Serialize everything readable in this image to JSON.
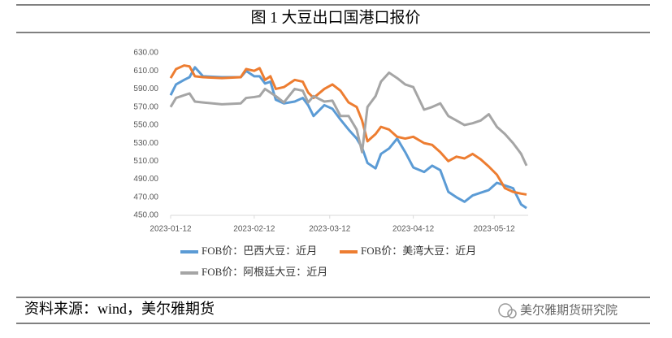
{
  "chart_data": {
    "type": "line",
    "title": "图 1  大豆出口国港口报价",
    "source": "资料来源：wind，美尔雅期货",
    "watermark": "美尔雅期货研究院",
    "x": [
      "2023-01-12",
      "2023-01-14",
      "2023-01-17",
      "2023-01-19",
      "2023-01-21",
      "2023-01-24",
      "2023-01-31",
      "2023-02-07",
      "2023-02-09",
      "2023-02-12",
      "2023-02-14",
      "2023-02-16",
      "2023-02-18",
      "2023-02-20",
      "2023-02-23",
      "2023-02-27",
      "2023-03-02",
      "2023-03-04",
      "2023-03-06",
      "2023-03-10",
      "2023-03-13",
      "2023-03-16",
      "2023-03-19",
      "2023-03-22",
      "2023-03-24",
      "2023-03-26",
      "2023-03-29",
      "2023-03-31",
      "2023-04-03",
      "2023-04-06",
      "2023-04-09",
      "2023-04-12",
      "2023-04-16",
      "2023-04-19",
      "2023-04-22",
      "2023-04-25",
      "2023-04-28",
      "2023-05-01",
      "2023-05-04",
      "2023-05-07",
      "2023-05-10",
      "2023-05-13",
      "2023-05-16",
      "2023-05-19",
      "2023-05-22",
      "2023-05-24"
    ],
    "series": [
      {
        "name": "FOB价：巴西大豆：近月",
        "color": "#5b9bd5",
        "values": [
          583,
          595,
          600,
          603,
          614,
          604,
          603,
          603,
          610,
          604,
          604,
          596,
          598,
          578,
          574,
          576,
          580,
          572,
          560,
          572,
          568,
          556,
          545,
          535,
          525,
          508,
          502,
          518,
          524,
          535,
          520,
          503,
          498,
          505,
          500,
          476,
          470,
          465,
          472,
          475,
          478,
          486,
          483,
          480,
          462,
          458
        ]
      },
      {
        "name": "FOB价：美湾大豆：近月",
        "color": "#ed7d31",
        "values": [
          602,
          612,
          616,
          615,
          604,
          603,
          602,
          603,
          612,
          610,
          613,
          600,
          604,
          590,
          592,
          600,
          598,
          586,
          580,
          590,
          595,
          588,
          575,
          570,
          555,
          532,
          540,
          548,
          545,
          537,
          535,
          537,
          530,
          528,
          520,
          510,
          515,
          513,
          518,
          512,
          504,
          495,
          480,
          476,
          474,
          473
        ]
      },
      {
        "name": "FOB价：阿根廷大豆：近月",
        "color": "#a5a5a5",
        "values": [
          570,
          580,
          583,
          585,
          576,
          575,
          573,
          574,
          580,
          581,
          582,
          590,
          586,
          582,
          575,
          590,
          588,
          575,
          582,
          576,
          577,
          560,
          560,
          545,
          520,
          570,
          582,
          598,
          608,
          602,
          595,
          592,
          567,
          570,
          574,
          560,
          555,
          550,
          552,
          555,
          562,
          548,
          540,
          530,
          518,
          505
        ]
      }
    ],
    "xlim": [
      "2023-01-12",
      "2023-05-24"
    ],
    "xticks": [
      "2023-01-12",
      "2023-02-12",
      "2023-03-12",
      "2023-04-12",
      "2023-05-12"
    ],
    "ylim": [
      450,
      630
    ],
    "yticks": [
      {
        "value": 450,
        "label": "450.00"
      },
      {
        "value": 470,
        "label": "470.00"
      },
      {
        "value": 490,
        "label": "490.00"
      },
      {
        "value": 510,
        "label": "510.00"
      },
      {
        "value": 530,
        "label": "530.00"
      },
      {
        "value": 550,
        "label": "550.00"
      },
      {
        "value": 570,
        "label": "570.00"
      },
      {
        "value": 590,
        "label": "590.00"
      },
      {
        "value": 610,
        "label": "610.00"
      },
      {
        "value": 630,
        "label": "630.00"
      }
    ],
    "grid": false
  }
}
